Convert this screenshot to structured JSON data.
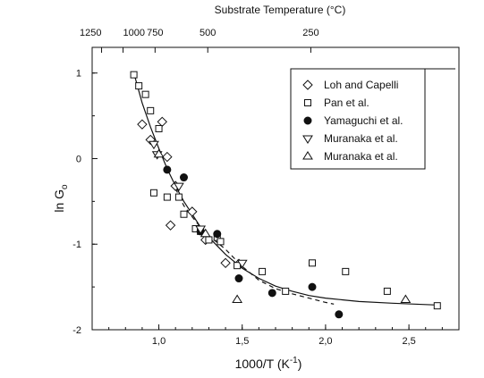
{
  "chart_data": {
    "type": "scatter",
    "title": "",
    "xlabel": "1000/T (K",
    "xlabel_sup": "-1",
    "xlabel_close": ")",
    "ylabel": "ln G",
    "ylabel_sub": "o",
    "top_axis_label": "Substrate Temperature (°C)",
    "top_ticks": [
      {
        "label": "1250",
        "celsius": 1250
      },
      {
        "label": "1000",
        "celsius": 1000
      },
      {
        "label": "750",
        "celsius": 750
      },
      {
        "label": "500",
        "celsius": 500
      },
      {
        "label": "250",
        "celsius": 250
      }
    ],
    "xlim": [
      0.6,
      2.8
    ],
    "ylim": [
      -2,
      1.3
    ],
    "x_ticks": [
      {
        "value": 1.0,
        "label": "1,0"
      },
      {
        "value": 1.5,
        "label": "1,5"
      },
      {
        "value": 2.0,
        "label": "2,0"
      },
      {
        "value": 2.5,
        "label": "2,5"
      }
    ],
    "y_ticks": [
      {
        "value": 1,
        "label": "1"
      },
      {
        "value": 0,
        "label": "0"
      },
      {
        "value": -1,
        "label": "-1"
      },
      {
        "value": -2,
        "label": "-2"
      }
    ],
    "legend_position": "top-right",
    "series": [
      {
        "name": "Loh and Capelli",
        "marker": "diamond",
        "x": [
          0.9,
          0.95,
          1.02,
          1.05,
          1.07,
          1.1,
          1.2,
          1.28,
          1.4,
          1.48
        ],
        "y": [
          0.4,
          0.22,
          0.43,
          0.02,
          -0.78,
          -0.32,
          -0.62,
          -0.95,
          -1.22,
          -1.23
        ]
      },
      {
        "name": "Pan et al.",
        "marker": "square",
        "x": [
          0.85,
          0.88,
          0.92,
          0.95,
          0.97,
          1.0,
          1.05,
          1.12,
          1.15,
          1.22,
          1.25,
          1.3,
          1.35,
          1.37,
          1.47,
          1.62,
          1.76,
          1.92,
          2.12,
          2.37,
          2.67
        ],
        "y": [
          0.98,
          0.85,
          0.75,
          0.56,
          -0.4,
          0.35,
          -0.45,
          -0.45,
          -0.65,
          -0.82,
          -0.85,
          -0.95,
          -0.92,
          -0.97,
          -1.25,
          -1.32,
          -1.55,
          -1.22,
          -1.32,
          -1.55,
          -1.72
        ]
      },
      {
        "name": "Yamaguchi et al.",
        "marker": "circle",
        "x": [
          1.05,
          1.15,
          1.25,
          1.35,
          1.48,
          1.68,
          1.92,
          2.08
        ],
        "y": [
          -0.13,
          -0.22,
          -0.85,
          -0.88,
          -1.4,
          -1.57,
          -1.5,
          -1.82
        ]
      },
      {
        "name": "Muranaka et al.",
        "marker": "triangle-down",
        "x": [
          0.97,
          0.99,
          1.12,
          1.25,
          1.5
        ],
        "y": [
          0.17,
          0.05,
          -0.32,
          -0.82,
          -1.22
        ]
      },
      {
        "name": "Muranaka et al.",
        "marker": "triangle-up",
        "x": [
          1.0,
          1.28,
          1.47,
          2.48
        ],
        "y": [
          0.05,
          -0.88,
          -1.65,
          -1.65
        ]
      }
    ],
    "fit_curves": [
      {
        "style": "solid",
        "x": [
          0.85,
          0.9,
          0.95,
          1.0,
          1.05,
          1.1,
          1.15,
          1.2,
          1.25,
          1.3,
          1.4,
          1.5,
          1.6,
          1.7,
          1.8,
          1.9,
          2.0,
          2.2,
          2.4,
          2.65
        ],
        "y": [
          1.0,
          0.65,
          0.37,
          0.12,
          -0.12,
          -0.32,
          -0.5,
          -0.65,
          -0.8,
          -0.92,
          -1.12,
          -1.28,
          -1.4,
          -1.49,
          -1.55,
          -1.6,
          -1.63,
          -1.67,
          -1.69,
          -1.71
        ]
      },
      {
        "style": "dashed",
        "x": [
          1.1,
          1.15,
          1.2,
          1.25,
          1.3,
          1.4,
          1.5,
          1.6,
          1.7,
          1.8,
          1.9,
          2.0,
          2.05
        ],
        "y": [
          -0.35,
          -0.55,
          -0.68,
          -0.8,
          -0.9,
          -1.06,
          -1.26,
          -1.42,
          -1.52,
          -1.58,
          -1.63,
          -1.68,
          -1.7
        ]
      }
    ]
  }
}
